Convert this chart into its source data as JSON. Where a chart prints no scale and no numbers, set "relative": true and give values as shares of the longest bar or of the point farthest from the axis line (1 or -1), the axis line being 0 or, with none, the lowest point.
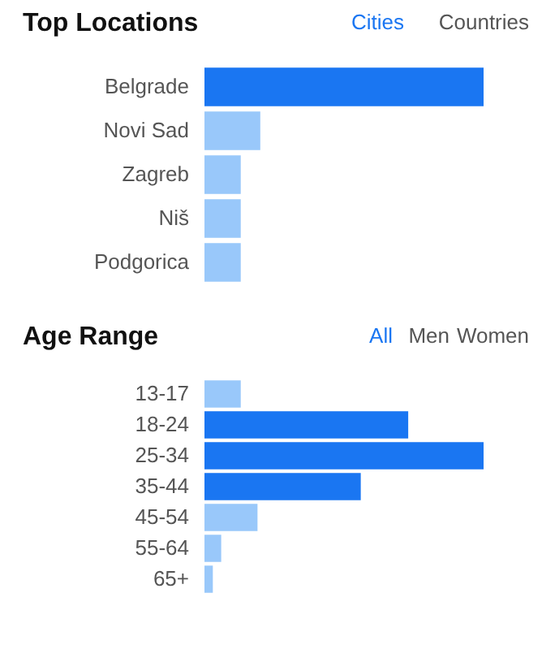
{
  "chart_data": [
    {
      "type": "bar",
      "orientation": "horizontal",
      "relative": true,
      "title": "Top Locations",
      "annotations": [
        "Cities",
        "Countries"
      ],
      "categories": [
        "Belgrade",
        "Novi Sad",
        "Zagreb",
        "Niš",
        "Podgorica"
      ],
      "values": [
        1,
        0.2,
        0.13,
        0.13,
        0.13
      ],
      "colors": [
        "#1a76f2",
        "#99c8fa",
        "#99c8fa",
        "#99c8fa",
        "#99c8fa"
      ]
    },
    {
      "type": "bar",
      "orientation": "horizontal",
      "relative": true,
      "title": "Age Range",
      "annotations": [
        "All",
        "Men",
        "Women"
      ],
      "categories": [
        "13-17",
        "18-24",
        "25-34",
        "35-44",
        "45-54",
        "55-64",
        "65+"
      ],
      "values": [
        0.13,
        0.73,
        1,
        0.56,
        0.19,
        0.06,
        0.03
      ],
      "colors": [
        "#99c8fa",
        "#1a76f2",
        "#1a76f2",
        "#1a76f2",
        "#99c8fa",
        "#99c8fa",
        "#99c8fa"
      ]
    }
  ]
}
